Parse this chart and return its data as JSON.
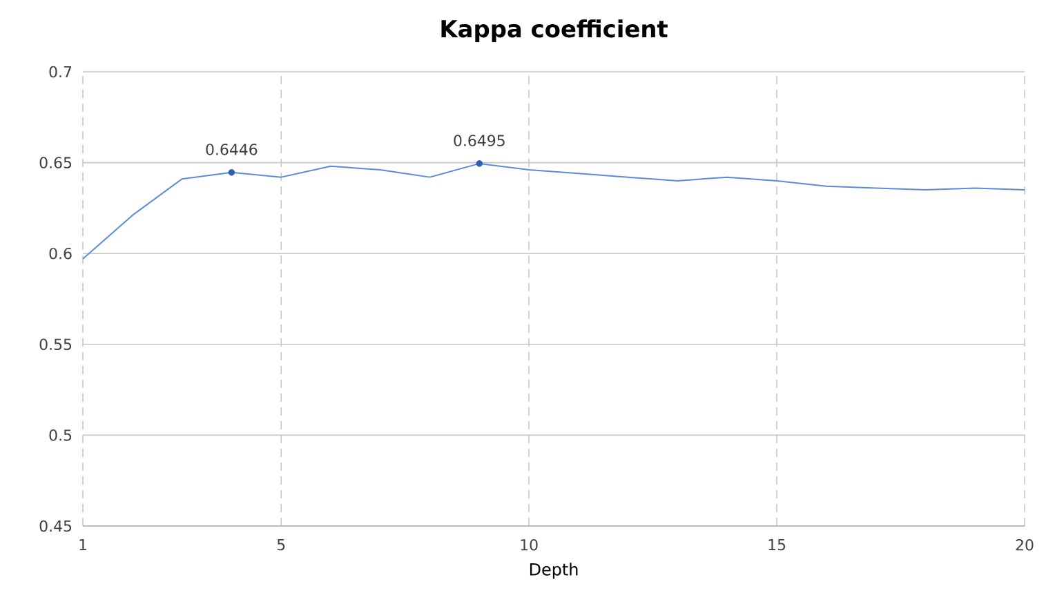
{
  "chart_data": {
    "type": "line",
    "title": "Kappa coefficient",
    "xlabel": "Depth",
    "x": [
      1,
      2,
      3,
      4,
      5,
      6,
      7,
      8,
      9,
      10,
      11,
      12,
      13,
      14,
      15,
      16,
      17,
      18,
      19,
      20
    ],
    "series": [
      {
        "color": "#5b8bd8",
        "values": [
          0.597,
          0.621,
          0.641,
          0.6446,
          0.642,
          0.648,
          0.646,
          0.642,
          0.6495,
          0.646,
          0.644,
          0.642,
          0.64,
          0.642,
          0.64,
          0.637,
          0.636,
          0.635,
          0.636,
          0.635
        ]
      },
      {
        "type": "scatter",
        "color": "#2f5fb0",
        "x": [
          4,
          9
        ],
        "values": [
          0.6446,
          0.6495
        ],
        "value_labels": [
          "0.6446",
          "0.6495"
        ]
      }
    ],
    "xlim": [
      1,
      20
    ],
    "xticks": [
      1,
      5,
      10,
      15,
      20
    ],
    "ylim": [
      0.45,
      0.7
    ],
    "yticks": [
      0.45,
      0.5,
      0.55,
      0.6,
      0.65,
      0.7
    ],
    "grid": true
  }
}
